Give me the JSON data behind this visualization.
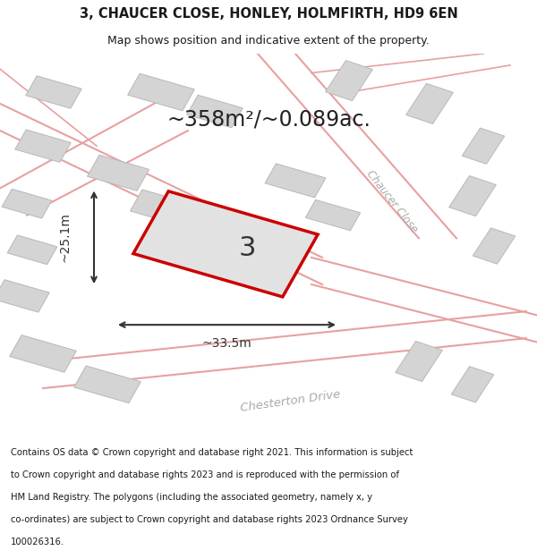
{
  "title_line1": "3, CHAUCER CLOSE, HONLEY, HOLMFIRTH, HD9 6EN",
  "title_line2": "Map shows position and indicative extent of the property.",
  "area_text": "~358m²/~0.089ac.",
  "plot_number": "3",
  "dim_width": "~33.5m",
  "dim_height": "~25.1m",
  "road_label1": "Chaucer Close",
  "road_label2": "Chesterton Drive",
  "footer_lines": [
    "Contains OS data © Crown copyright and database right 2021. This information is subject",
    "to Crown copyright and database rights 2023 and is reproduced with the permission of",
    "HM Land Registry. The polygons (including the associated geometry, namely x, y",
    "co-ordinates) are subject to Crown copyright and database rights 2023 Ordnance Survey",
    "100026316."
  ],
  "map_bg": "#ebebeb",
  "building_fill": "#d4d4d4",
  "building_edge": "#b8b8b8",
  "road_line_color": "#e8a0a0",
  "plot_outline_color": "#cc0000",
  "measure_color": "#333333",
  "title_color": "#1a1a1a",
  "footer_color": "#1a1a1a",
  "road_label_color": "#aaaaaa"
}
